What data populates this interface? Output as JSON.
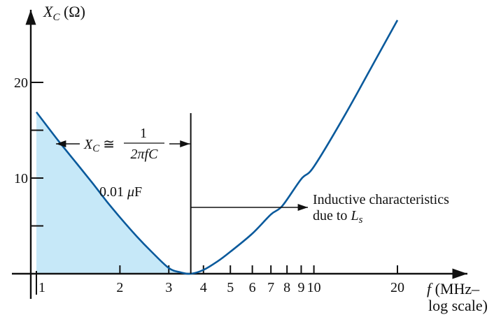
{
  "chart_data": {
    "type": "line",
    "x_scale": "log",
    "x_ticks": [
      1,
      2,
      3,
      4,
      5,
      6,
      7,
      8,
      9,
      10,
      20
    ],
    "x_tick_labels": [
      "1",
      "2",
      "3",
      "4",
      "5",
      "6",
      "7",
      "8",
      "9",
      "10",
      "20"
    ],
    "y_ticks": [
      5,
      10,
      15,
      20
    ],
    "y_tick_labels": [
      "",
      "10",
      "",
      "20"
    ],
    "xlim": [
      0.97,
      29
    ],
    "ylim": [
      0,
      27.5
    ],
    "ylabel": {
      "main": "X",
      "sub": "C",
      "unit": " (Ω)"
    },
    "xlabel": {
      "line1": "f (MHz–",
      "line2": "log scale)"
    },
    "grid": false,
    "series": [
      {
        "name": "0.01 μF",
        "color": "#0a5a9c",
        "fill_under_to_x": 3.6,
        "fill_color": "#c6e8f8",
        "x": [
          1,
          1.2,
          1.4,
          1.6,
          1.8,
          2,
          2.3,
          2.6,
          3,
          3.3,
          3.6,
          4,
          4.5,
          5,
          6,
          7,
          7.7,
          9,
          10,
          13,
          17,
          20
        ],
        "y": [
          16.9,
          13.9,
          11.5,
          9.4,
          7.5,
          5.9,
          3.9,
          2.3,
          0.6,
          0.15,
          0.0,
          0.4,
          1.3,
          2.3,
          4.2,
          6.2,
          7.1,
          9.9,
          11.2,
          16.7,
          22.8,
          26.5
        ]
      }
    ],
    "annotations": {
      "formula": {
        "lhs": "X",
        "lhs_sub": "C",
        "op": " ≅ ",
        "numerator": "1",
        "denominator": "2πfC",
        "x_from": 1.1,
        "x_to": 3.6,
        "y": 13.5
      },
      "series_label": {
        "text": "0.01 μF",
        "x": 1.8,
        "y": 8.3
      },
      "inductive": {
        "line1": "Inductive characteristics",
        "line2": "due to ",
        "L": "L",
        "sub": "s",
        "arrow_from_x": 3.6,
        "arrow_to_x": 12.5,
        "arrow_y": 7.0
      },
      "divider_x": 3.6
    }
  }
}
